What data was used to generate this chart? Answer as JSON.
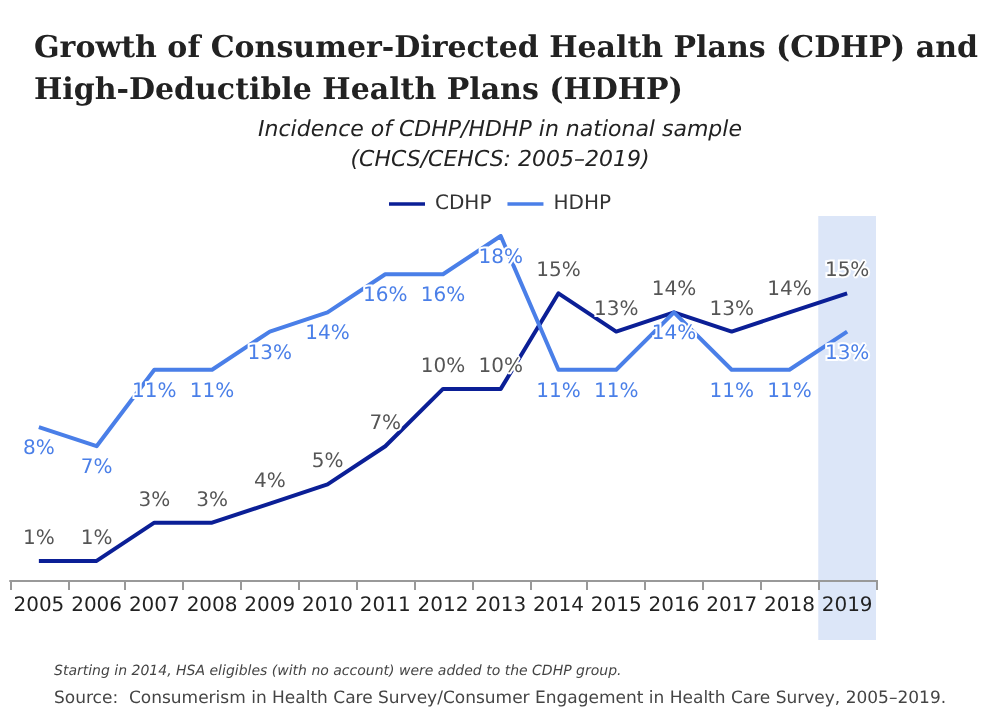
{
  "chart_data": {
    "type": "line",
    "title": "Growth of Consumer-Directed Health Plans (CDHP) and\nHigh-Deductible Health Plans (HDHP)",
    "subtitle": "Incidence of CDHP/HDHP in national sample\n(CHCS/CEHCS: 2005–2019)",
    "categories": [
      "2005",
      "2006",
      "2007",
      "2008",
      "2009",
      "2010",
      "2011",
      "2012",
      "2013",
      "2014",
      "2015",
      "2016",
      "2017",
      "2018",
      "2019"
    ],
    "series": [
      {
        "name": "CDHP",
        "color": "#0b1f96",
        "values": [
          1,
          1,
          3,
          3,
          4,
          5,
          7,
          10,
          10,
          15,
          13,
          14,
          13,
          14,
          15
        ],
        "value_labels": [
          "1%",
          "1%",
          "3%",
          "3%",
          "4%",
          "5%",
          "7%",
          "10%",
          "10%",
          "15%",
          "13%",
          "14%",
          "13%",
          "14%",
          "15%"
        ]
      },
      {
        "name": "HDHP",
        "color": "#4a7fe8",
        "values": [
          8,
          7,
          11,
          11,
          13,
          14,
          16,
          16,
          18,
          11,
          11,
          14,
          11,
          11,
          13
        ],
        "value_labels": [
          "8%",
          "7%",
          "11%",
          "11%",
          "13%",
          "14%",
          "16%",
          "16%",
          "18%",
          "11%",
          "11%",
          "14%",
          "11%",
          "11%",
          "13%"
        ]
      }
    ],
    "tick_labels": "x",
    "legend": "top",
    "grid": false,
    "marker": "none",
    "bands": [
      {
        "axis": "x",
        "from": "2019",
        "to": "2019",
        "color": "#dce6f8"
      }
    ],
    "annotations": [
      "Starting in 2014, HSA eligibles (with no account) were added to the CDHP group.",
      "Source:  Consumerism in Health Care Survey/Consumer Engagement in Health Care Survey, 2005–2019."
    ]
  }
}
